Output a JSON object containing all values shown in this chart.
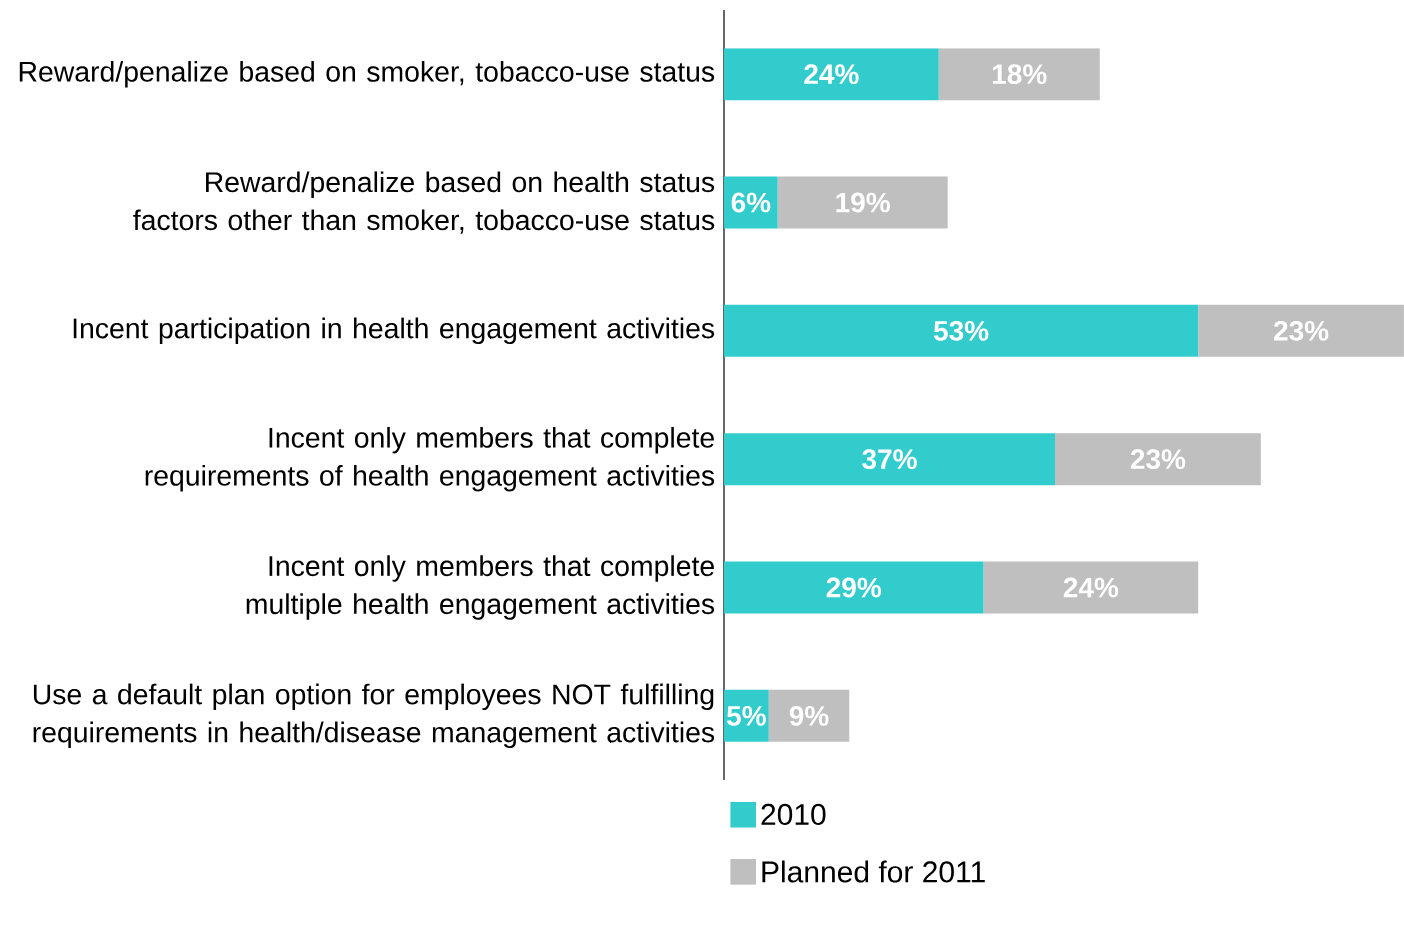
{
  "chart_data": {
    "type": "bar",
    "orientation": "horizontal",
    "stacked": true,
    "categories": [
      "Reward/penalize based on smoker, tobacco-use status",
      "Reward/penalize based on health status factors other than smoker, tobacco-use status",
      "Incent participation in health engagement activities",
      "Incent only members that complete requirements of health engagement activities",
      "Incent only members that complete multiple health engagement activities",
      "Use a default plan option for employees NOT fulfilling requirements in health/disease management activities"
    ],
    "series": [
      {
        "name": "2010",
        "color": "#33cccc",
        "values": [
          24,
          6,
          53,
          37,
          29,
          5
        ],
        "value_labels": [
          "24%",
          "6%",
          "53%",
          "37%",
          "29%",
          "5%"
        ]
      },
      {
        "name": "Planned for 2011",
        "color": "#bfbfbf",
        "values": [
          18,
          19,
          23,
          23,
          24,
          9
        ],
        "value_labels": [
          "18%",
          "19%",
          "23%",
          "23%",
          "24%",
          "9%"
        ]
      }
    ],
    "legend": "bottom"
  }
}
